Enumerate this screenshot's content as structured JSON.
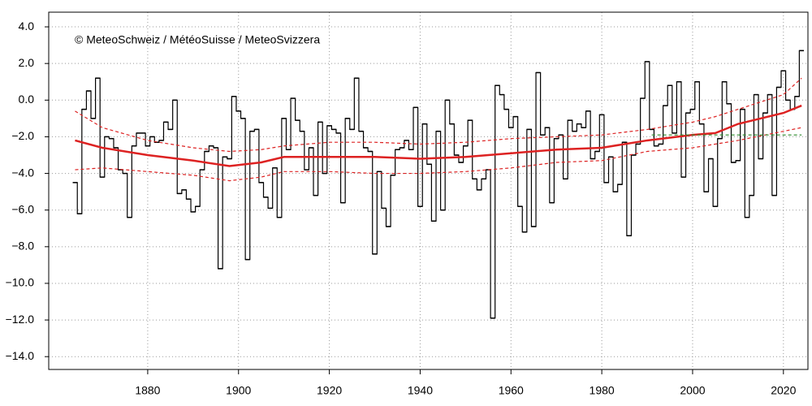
{
  "chart_data": {
    "type": "step",
    "annotation": "© MeteoSchweiz / MétéoSuisse / MeteoSvizzera",
    "xlim": [
      1858.2,
      2025.4
    ],
    "xticks": [
      1880,
      1900,
      1920,
      1940,
      1960,
      1980,
      2000,
      2020
    ],
    "ylim": [
      -14.7,
      4.8
    ],
    "yticks": [
      {
        "value": 4,
        "label": "4.0"
      },
      {
        "value": 2,
        "label": "2.0"
      },
      {
        "value": 0,
        "label": "0.0"
      },
      {
        "value": -2,
        "label": "−2.0"
      },
      {
        "value": -4,
        "label": "−4.0"
      },
      {
        "value": -6,
        "label": "−6.0"
      },
      {
        "value": -8,
        "label": "−8.0"
      },
      {
        "value": -10,
        "label": "−10.0"
      },
      {
        "value": -12,
        "label": "−12.0"
      },
      {
        "value": -14,
        "label": "−14.0"
      }
    ],
    "grid": true,
    "series": [
      {
        "color": "#000000",
        "style": "step",
        "x": [
          1864,
          1865,
          1866,
          1867,
          1868,
          1869,
          1870,
          1871,
          1872,
          1873,
          1874,
          1875,
          1876,
          1877,
          1878,
          1879,
          1880,
          1881,
          1882,
          1883,
          1884,
          1885,
          1886,
          1887,
          1888,
          1889,
          1890,
          1891,
          1892,
          1893,
          1894,
          1895,
          1896,
          1897,
          1898,
          1899,
          1900,
          1901,
          1902,
          1903,
          1904,
          1905,
          1906,
          1907,
          1908,
          1909,
          1910,
          1911,
          1912,
          1913,
          1914,
          1915,
          1916,
          1917,
          1918,
          1919,
          1920,
          1921,
          1922,
          1923,
          1924,
          1925,
          1926,
          1927,
          1928,
          1929,
          1930,
          1931,
          1932,
          1933,
          1934,
          1935,
          1936,
          1937,
          1938,
          1939,
          1940,
          1941,
          1942,
          1943,
          1944,
          1945,
          1946,
          1947,
          1948,
          1949,
          1950,
          1951,
          1952,
          1953,
          1954,
          1955,
          1956,
          1957,
          1958,
          1959,
          1960,
          1961,
          1962,
          1963,
          1964,
          1965,
          1966,
          1967,
          1968,
          1969,
          1970,
          1971,
          1972,
          1973,
          1974,
          1975,
          1976,
          1977,
          1978,
          1979,
          1980,
          1981,
          1982,
          1983,
          1984,
          1985,
          1986,
          1987,
          1988,
          1989,
          1990,
          1991,
          1992,
          1993,
          1994,
          1995,
          1996,
          1997,
          1998,
          1999,
          2000,
          2001,
          2002,
          2003,
          2004,
          2005,
          2006,
          2007,
          2008,
          2009,
          2010,
          2011,
          2012,
          2013,
          2014,
          2015,
          2016,
          2017,
          2018,
          2019,
          2020,
          2021,
          2022,
          2023,
          2024
        ],
        "values": [
          -4.5,
          -6.2,
          -0.5,
          0.5,
          -1.0,
          1.2,
          -4.2,
          -2.0,
          -2.1,
          -2.6,
          -3.8,
          -4.0,
          -6.4,
          -2.5,
          -1.8,
          -1.8,
          -2.5,
          -2.0,
          -2.3,
          -2.2,
          -1.2,
          -1.6,
          0.0,
          -5.1,
          -4.9,
          -5.4,
          -6.1,
          -5.8,
          -3.8,
          -2.8,
          -2.5,
          -2.6,
          -9.2,
          -3.1,
          -3.2,
          0.2,
          -0.6,
          -1.0,
          -8.7,
          -1.7,
          -1.6,
          -4.5,
          -5.3,
          -5.9,
          -3.7,
          -6.4,
          -1.0,
          -2.7,
          0.1,
          -1.1,
          -1.7,
          -3.8,
          -2.6,
          -5.2,
          -1.2,
          -4.0,
          -1.4,
          -1.6,
          -1.8,
          -5.6,
          -1.0,
          -1.6,
          1.2,
          -1.7,
          -2.6,
          -2.8,
          -8.4,
          -3.9,
          -5.9,
          -6.9,
          -4.1,
          -2.7,
          -2.6,
          -2.2,
          -2.7,
          -0.4,
          -5.8,
          -1.3,
          -3.5,
          -6.6,
          -1.7,
          -6.0,
          0.0,
          -1.3,
          -3.0,
          -3.4,
          -2.5,
          -1.1,
          -4.3,
          -4.9,
          -4.3,
          -3.8,
          -11.9,
          0.8,
          0.3,
          -0.5,
          -1.5,
          -0.9,
          -5.8,
          -7.2,
          -1.6,
          -6.9,
          1.5,
          -1.9,
          -1.5,
          -5.6,
          -2.1,
          -1.9,
          -4.3,
          -1.1,
          -1.7,
          -1.3,
          -1.5,
          -0.6,
          -3.2,
          -2.8,
          -0.8,
          -4.5,
          -3.1,
          -5.0,
          -4.6,
          -2.3,
          -7.4,
          -3.0,
          -2.4,
          0.1,
          2.1,
          -1.6,
          -2.5,
          -2.4,
          -0.3,
          0.8,
          -1.8,
          1.0,
          -4.2,
          -0.7,
          -0.5,
          1.0,
          -1.3,
          -5.0,
          -3.2,
          -5.8,
          -2.1,
          1.0,
          -0.2,
          -3.4,
          -3.3,
          -0.5,
          -6.4,
          -5.2,
          0.3,
          -3.2,
          -0.7,
          0.3,
          -5.2,
          0.7,
          1.6,
          0.0,
          -0.5,
          0.2,
          2.7
        ]
      },
      {
        "color": "#dd2222",
        "style": "solid",
        "x": [
          1864,
          1870,
          1880,
          1890,
          1898,
          1905,
          1910,
          1920,
          1930,
          1940,
          1950,
          1960,
          1970,
          1980,
          1990,
          2000,
          2005,
          2010,
          2020,
          2024
        ],
        "values": [
          -2.2,
          -2.6,
          -3.0,
          -3.3,
          -3.6,
          -3.4,
          -3.1,
          -3.1,
          -3.1,
          -3.2,
          -3.1,
          -2.9,
          -2.7,
          -2.6,
          -2.2,
          -1.9,
          -1.8,
          -1.3,
          -0.7,
          -0.3
        ]
      },
      {
        "color": "#dd2222",
        "style": "dashed",
        "x": [
          1864,
          1870,
          1880,
          1890,
          1898,
          1905,
          1910,
          1920,
          1930,
          1940,
          1950,
          1960,
          1970,
          1980,
          1990,
          2000,
          2005,
          2010,
          2020,
          2024
        ],
        "values": [
          -0.6,
          -1.5,
          -2.2,
          -2.6,
          -2.8,
          -2.7,
          -2.5,
          -2.3,
          -2.3,
          -2.4,
          -2.3,
          -2.1,
          -2.0,
          -1.9,
          -1.6,
          -1.2,
          -0.9,
          -0.5,
          0.3,
          1.2
        ]
      },
      {
        "color": "#dd2222",
        "style": "dashed",
        "x": [
          1864,
          1870,
          1880,
          1890,
          1898,
          1905,
          1910,
          1920,
          1930,
          1940,
          1950,
          1960,
          1970,
          1980,
          1990,
          2000,
          2005,
          2010,
          2020,
          2024
        ],
        "values": [
          -3.8,
          -3.7,
          -3.9,
          -4.1,
          -4.4,
          -4.2,
          -3.9,
          -3.9,
          -4.0,
          -4.0,
          -3.9,
          -3.7,
          -3.4,
          -3.3,
          -2.8,
          -2.6,
          -2.4,
          -2.2,
          -1.7,
          -1.5
        ]
      },
      {
        "color": "#2a8a2a",
        "style": "dashed",
        "x": [
          1991,
          2024
        ],
        "values": [
          -1.9,
          -1.9
        ]
      }
    ]
  }
}
